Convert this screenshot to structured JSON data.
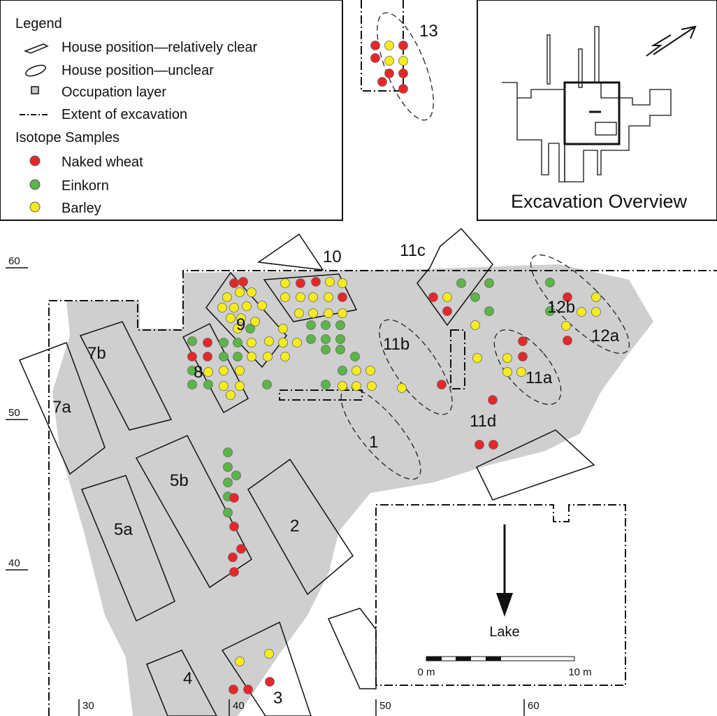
{
  "legend": {
    "title": "Legend",
    "items": [
      "House position—relatively clear",
      "House position—unclear",
      "Occupation layer",
      "Extent of excavation"
    ],
    "samples_title": "Isotope Samples",
    "samples": [
      "Naked wheat",
      "Einkorn",
      "Barley"
    ]
  },
  "overview": {
    "title": "Excavation Overview"
  },
  "houses": [
    "13",
    "10",
    "11c",
    "12b",
    "12a",
    "9",
    "11b",
    "11a",
    "7b",
    "8",
    "7a",
    "1",
    "11d",
    "5b",
    "2",
    "5a",
    "4",
    "3"
  ],
  "grid": {
    "y_labels": [
      "60",
      "50",
      "40"
    ],
    "x_labels": [
      "30",
      "40",
      "50",
      "60"
    ]
  },
  "lake": "Lake",
  "scale": [
    "0 m",
    "10 m"
  ]
}
